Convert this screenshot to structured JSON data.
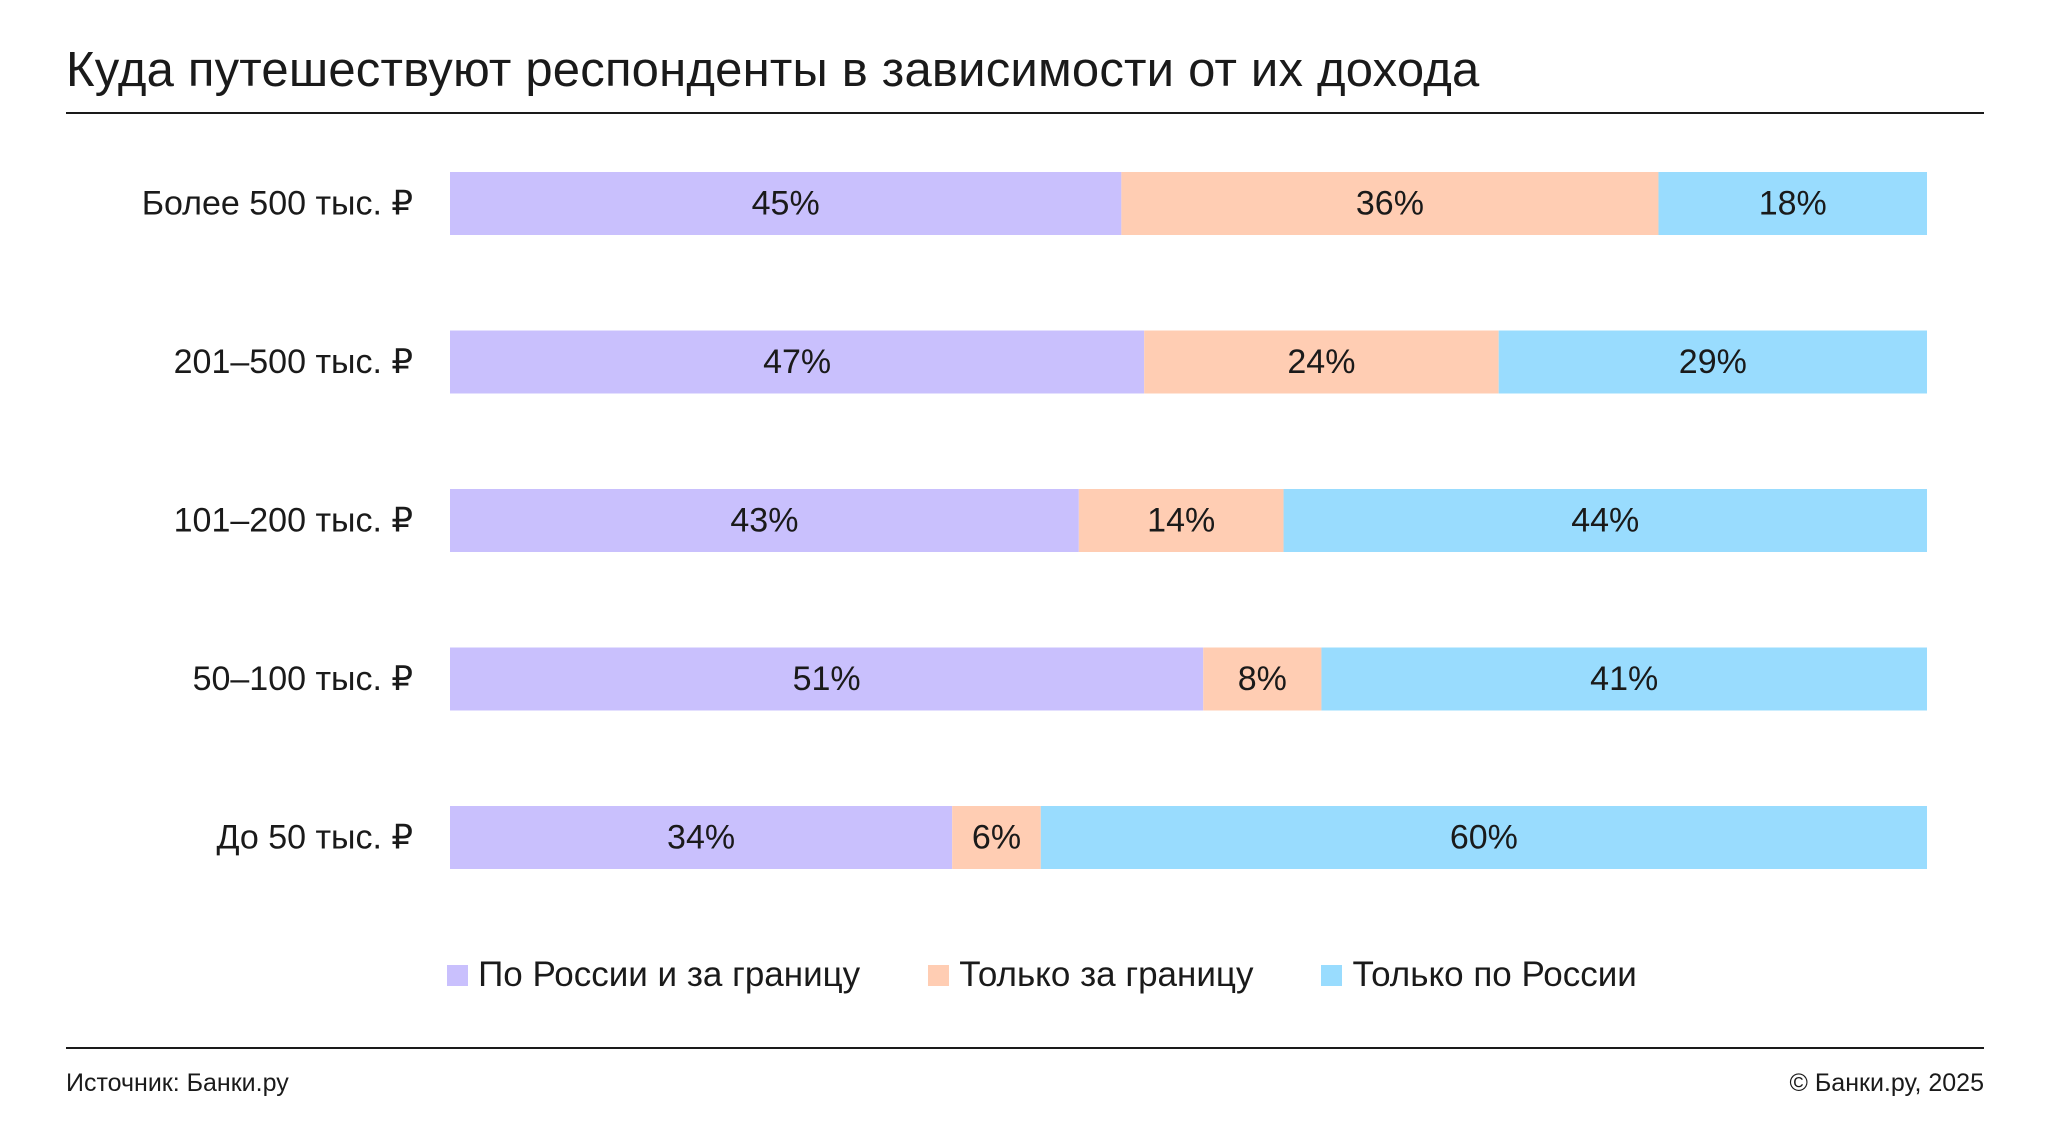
{
  "title": "Куда путешествуют респонденты в зависимости от их дохода",
  "footer": {
    "source": "Источник: Банки.ру",
    "copyright": "© Банки.ру, 2025"
  },
  "colors": {
    "russia_and_abroad": "#c9c0fd",
    "abroad_only": "#ffcdb3",
    "russia_only": "#99dcfe"
  },
  "chart_data": {
    "type": "bar",
    "orientation": "horizontal",
    "stacked": true,
    "categories": [
      "Более 500 тыс. ₽",
      "201–500 тыс. ₽",
      "101–200 тыс. ₽",
      "50–100 тыс. ₽",
      "До 50 тыс. ₽"
    ],
    "series": [
      {
        "name": "По России и за границу",
        "values": [
          45,
          47,
          43,
          51,
          34
        ],
        "labels": [
          "45%",
          "47%",
          "43%",
          "51%",
          "34%"
        ]
      },
      {
        "name": "Только за границу",
        "values": [
          36,
          24,
          14,
          8,
          6
        ],
        "labels": [
          "36%",
          "24%",
          "14%",
          "8%",
          "6%"
        ]
      },
      {
        "name": "Только по России",
        "values": [
          18,
          29,
          44,
          41,
          60
        ],
        "labels": [
          "18%",
          "29%",
          "44%",
          "41%",
          "60%"
        ]
      }
    ],
    "unit": "%",
    "legend": "bottom-center",
    "grid": false
  }
}
